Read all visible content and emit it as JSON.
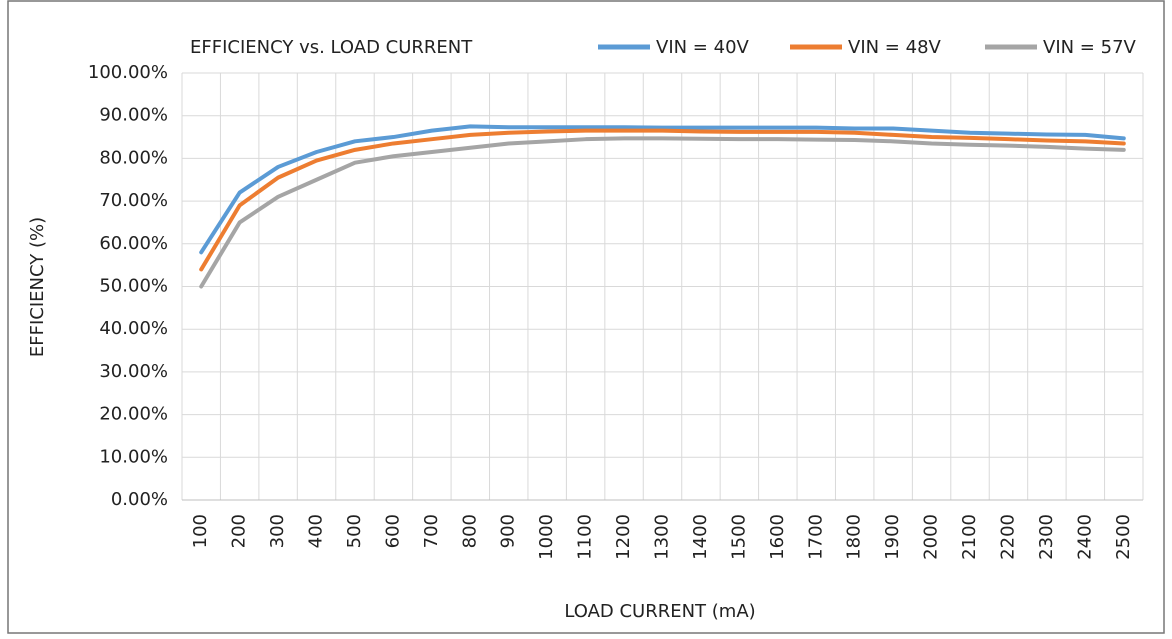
{
  "chart_data": {
    "type": "line",
    "title": "EFFICIENCY vs. LOAD CURRENT",
    "x_label": "LOAD CURRENT (mA)",
    "y_label": "EFFICIENCY (%)",
    "categories": [
      "100",
      "200",
      "300",
      "400",
      "500",
      "600",
      "700",
      "800",
      "900",
      "1000",
      "1100",
      "1200",
      "1300",
      "1400",
      "1500",
      "1600",
      "1700",
      "1800",
      "1900",
      "2000",
      "2100",
      "2200",
      "2300",
      "2400",
      "2500"
    ],
    "series": [
      {
        "name": "VIN = 40V",
        "color": "#5b9bd5",
        "values": [
          58,
          72,
          78,
          81.5,
          84,
          85,
          86.5,
          87.5,
          87.3,
          87.3,
          87.3,
          87.3,
          87.2,
          87.2,
          87.2,
          87.2,
          87.2,
          87,
          87,
          86.5,
          86,
          85.8,
          85.6,
          85.5,
          84.7
        ]
      },
      {
        "name": "VIN = 48V",
        "color": "#ed7d31",
        "values": [
          54,
          69,
          75.5,
          79.5,
          82,
          83.5,
          84.5,
          85.5,
          86,
          86.3,
          86.5,
          86.5,
          86.5,
          86.3,
          86.2,
          86.2,
          86.2,
          86,
          85.5,
          85,
          84.8,
          84.5,
          84.2,
          84,
          83.5
        ]
      },
      {
        "name": "VIN = 57V",
        "color": "#a5a5a5",
        "values": [
          50,
          65,
          71,
          75,
          79,
          80.5,
          81.5,
          82.5,
          83.5,
          84,
          84.5,
          84.7,
          84.7,
          84.6,
          84.5,
          84.5,
          84.4,
          84.3,
          84,
          83.5,
          83.2,
          83,
          82.7,
          82.3,
          82
        ]
      }
    ],
    "ylim": [
      0,
      100
    ],
    "yticks": [
      {
        "value": 0,
        "label": "0.00%"
      },
      {
        "value": 10,
        "label": "10.00%"
      },
      {
        "value": 20,
        "label": "20.00%"
      },
      {
        "value": 30,
        "label": "30.00%"
      },
      {
        "value": 40,
        "label": "40.00%"
      },
      {
        "value": 50,
        "label": "50.00%"
      },
      {
        "value": 60,
        "label": "60.00%"
      },
      {
        "value": 70,
        "label": "70.00%"
      },
      {
        "value": 80,
        "label": "80.00%"
      },
      {
        "value": 90,
        "label": "90.00%"
      },
      {
        "value": 100,
        "label": "100.00%"
      }
    ],
    "grid": true
  }
}
